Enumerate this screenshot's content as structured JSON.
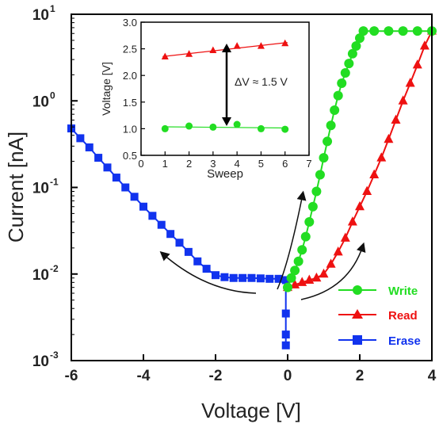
{
  "chart_data": [
    {
      "type": "line",
      "y_scale": "log",
      "xlabel": "Voltage [V]",
      "ylabel": "Current [nA]",
      "xlim": [
        -6,
        4
      ],
      "ylim": [
        0.001,
        10
      ],
      "x_ticks": [
        "-6",
        "-4",
        "-2",
        "0",
        "2",
        "4"
      ],
      "y_ticks": [
        {
          "mant": "10",
          "exp": "-3"
        },
        {
          "mant": "10",
          "exp": "-2"
        },
        {
          "mant": "10",
          "exp": "-1"
        },
        {
          "mant": "10",
          "exp": "0"
        },
        {
          "mant": "10",
          "exp": "1"
        }
      ],
      "legend_position": "bottom-right",
      "series": [
        {
          "name": "Write",
          "color": "#22dd22",
          "marker": "circle",
          "x": [
            0,
            0.1,
            0.2,
            0.3,
            0.4,
            0.5,
            0.6,
            0.7,
            0.8,
            0.9,
            1.0,
            1.1,
            1.2,
            1.3,
            1.4,
            1.5,
            1.6,
            1.7,
            1.8,
            1.9,
            2.0,
            2.1,
            2.4,
            2.8,
            3.2,
            3.6,
            4.0
          ],
          "y": [
            0.007,
            0.009,
            0.011,
            0.014,
            0.019,
            0.027,
            0.04,
            0.06,
            0.09,
            0.14,
            0.22,
            0.34,
            0.52,
            0.78,
            1.15,
            1.6,
            2.1,
            2.7,
            3.5,
            4.3,
            5.3,
            6.4,
            6.4,
            6.4,
            6.4,
            6.4,
            6.4
          ]
        },
        {
          "name": "Read",
          "color": "#ee1111",
          "marker": "triangle",
          "x": [
            0,
            0.2,
            0.4,
            0.6,
            0.8,
            1.0,
            1.2,
            1.4,
            1.6,
            1.8,
            2.0,
            2.2,
            2.4,
            2.6,
            2.8,
            3.0,
            3.2,
            3.4,
            3.6,
            3.8,
            4.0
          ],
          "y": [
            0.007,
            0.0075,
            0.008,
            0.0085,
            0.009,
            0.01,
            0.013,
            0.018,
            0.026,
            0.04,
            0.06,
            0.09,
            0.14,
            0.22,
            0.36,
            0.6,
            1.0,
            1.6,
            2.6,
            4.3,
            6.4
          ]
        },
        {
          "name": "Erase",
          "color": "#1133ee",
          "marker": "square",
          "x": [
            -6.0,
            -5.75,
            -5.5,
            -5.25,
            -5.0,
            -4.75,
            -4.5,
            -4.25,
            -4.0,
            -3.75,
            -3.5,
            -3.25,
            -3.0,
            -2.75,
            -2.5,
            -2.25,
            -2.0,
            -1.75,
            -1.5,
            -1.25,
            -1.0,
            -0.75,
            -0.5,
            -0.25,
            -0.05,
            -0.05,
            -0.05,
            -0.05
          ],
          "y": [
            0.48,
            0.37,
            0.29,
            0.22,
            0.17,
            0.13,
            0.1,
            0.078,
            0.06,
            0.047,
            0.037,
            0.029,
            0.023,
            0.018,
            0.014,
            0.0115,
            0.0097,
            0.0092,
            0.009,
            0.009,
            0.009,
            0.0089,
            0.0088,
            0.0088,
            0.0085,
            0.0035,
            0.002,
            0.0015
          ]
        }
      ]
    },
    {
      "type": "line",
      "inset": true,
      "xlabel": "Sweep",
      "ylabel": "Voltage [V]",
      "xlim": [
        0,
        7
      ],
      "ylim": [
        0.5,
        3.0
      ],
      "x_ticks": [
        "0",
        "1",
        "2",
        "3",
        "4",
        "5",
        "6",
        "7"
      ],
      "y_ticks": [
        "0.5",
        "1.0",
        "1.5",
        "2.0",
        "2.5",
        "3.0"
      ],
      "annotation": "ΔV ≈ 1.5 V",
      "series": [
        {
          "color": "#ee1111",
          "marker": "triangle",
          "x": [
            1,
            2,
            3,
            4,
            5,
            6
          ],
          "y": [
            2.35,
            2.4,
            2.47,
            2.55,
            2.55,
            2.6
          ]
        },
        {
          "color": "#22dd22",
          "marker": "circle",
          "x": [
            1,
            2,
            3,
            4,
            5,
            6
          ],
          "y": [
            1.0,
            1.05,
            1.03,
            1.08,
            1.0,
            0.99
          ]
        }
      ]
    }
  ]
}
